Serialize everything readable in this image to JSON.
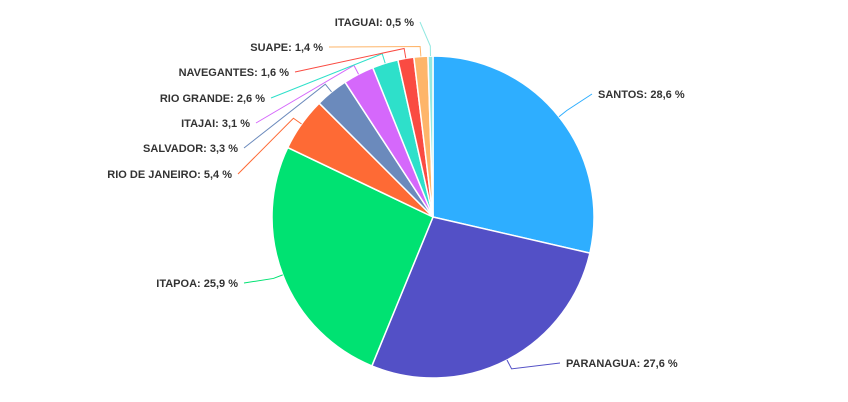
{
  "chart_data": {
    "type": "pie",
    "slices": [
      {
        "label": "SANTOS",
        "value": 28.6,
        "display": "SANTOS: 28,6 %",
        "color": "#2EAEFF"
      },
      {
        "label": "PARANAGUA",
        "value": 27.6,
        "display": "PARANAGUA: 27,6 %",
        "color": "#5350C6"
      },
      {
        "label": "ITAPOA",
        "value": 25.9,
        "display": "ITAPOA: 25,9 %",
        "color": "#00E272"
      },
      {
        "label": "RIO DE JANEIRO",
        "value": 5.4,
        "display": "RIO DE JANEIRO: 5,4 %",
        "color": "#FE6A35"
      },
      {
        "label": "SALVADOR",
        "value": 3.3,
        "display": "SALVADOR: 3,3 %",
        "color": "#6B8ABC"
      },
      {
        "label": "ITAJAI",
        "value": 3.1,
        "display": "ITAJAI: 3,1 %",
        "color": "#D568FB"
      },
      {
        "label": "RIO GRANDE",
        "value": 2.6,
        "display": "RIO GRANDE: 2,6 %",
        "color": "#2EE0CA"
      },
      {
        "label": "NAVEGANTES",
        "value": 1.6,
        "display": "NAVEGANTES: 1,6 %",
        "color": "#FA4B42"
      },
      {
        "label": "SUAPE",
        "value": 1.4,
        "display": "SUAPE: 1,4 %",
        "color": "#FEB56A"
      },
      {
        "label": "ITAGUAI",
        "value": 0.5,
        "display": "ITAGUAI: 0,5 %",
        "color": "#91E8E1"
      }
    ]
  }
}
